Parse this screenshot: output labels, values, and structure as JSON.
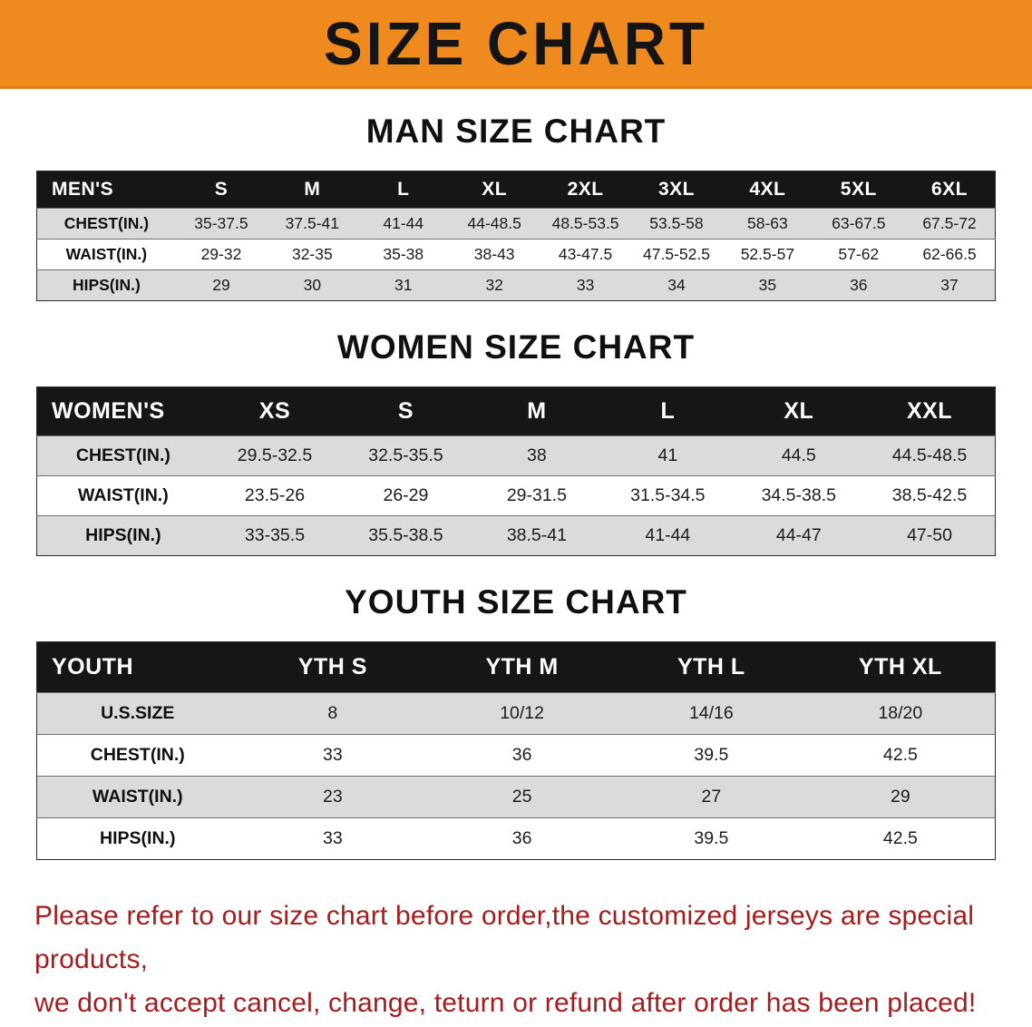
{
  "banner": {
    "title": "SIZE CHART",
    "background_color": "#ee8a1e"
  },
  "sections": [
    {
      "heading": "MAN SIZE CHART",
      "table": {
        "header": [
          "MEN'S",
          "S",
          "M",
          "L",
          "XL",
          "2XL",
          "3XL",
          "4XL",
          "5XL",
          "6XL"
        ],
        "rows": [
          {
            "label": "CHEST(IN.)",
            "values": [
              "35-37.5",
              "37.5-41",
              "41-44",
              "44-48.5",
              "48.5-53.5",
              "53.5-58",
              "58-63",
              "63-67.5",
              "67.5-72"
            ]
          },
          {
            "label": "WAIST(IN.)",
            "values": [
              "29-32",
              "32-35",
              "35-38",
              "38-43",
              "43-47.5",
              "47.5-52.5",
              "52.5-57",
              "57-62",
              "62-66.5"
            ]
          },
          {
            "label": "HIPS(IN.)",
            "values": [
              "29",
              "30",
              "31",
              "32",
              "33",
              "34",
              "35",
              "36",
              "37"
            ]
          }
        ]
      }
    },
    {
      "heading": "WOMEN SIZE CHART",
      "table": {
        "header": [
          "WOMEN'S",
          "XS",
          "S",
          "M",
          "L",
          "XL",
          "XXL"
        ],
        "rows": [
          {
            "label": "CHEST(IN.)",
            "values": [
              "29.5-32.5",
              "32.5-35.5",
              "38",
              "41",
              "44.5",
              "44.5-48.5"
            ]
          },
          {
            "label": "WAIST(IN.)",
            "values": [
              "23.5-26",
              "26-29",
              "29-31.5",
              "31.5-34.5",
              "34.5-38.5",
              "38.5-42.5"
            ]
          },
          {
            "label": "HIPS(IN.)",
            "values": [
              "33-35.5",
              "35.5-38.5",
              "38.5-41",
              "41-44",
              "44-47",
              "47-50"
            ]
          }
        ]
      }
    },
    {
      "heading": "YOUTH SIZE CHART",
      "table": {
        "header": [
          "YOUTH",
          "YTH S",
          "YTH M",
          "YTH L",
          "YTH XL"
        ],
        "rows": [
          {
            "label": "U.S.SIZE",
            "values": [
              "8",
              "10/12",
              "14/16",
              "18/20"
            ]
          },
          {
            "label": "CHEST(IN.)",
            "values": [
              "33",
              "36",
              "39.5",
              "42.5"
            ]
          },
          {
            "label": "WAIST(IN.)",
            "values": [
              "23",
              "25",
              "27",
              "29"
            ]
          },
          {
            "label": "HIPS(IN.)",
            "values": [
              "33",
              "36",
              "39.5",
              "42.5"
            ]
          }
        ]
      }
    }
  ],
  "footer": {
    "line1": "Please refer to our size chart before order,the customized jerseys are special products,",
    "line2": "we don't accept cancel, change, teturn or refund after order has been placed!",
    "text_color": "#a61c1c"
  }
}
